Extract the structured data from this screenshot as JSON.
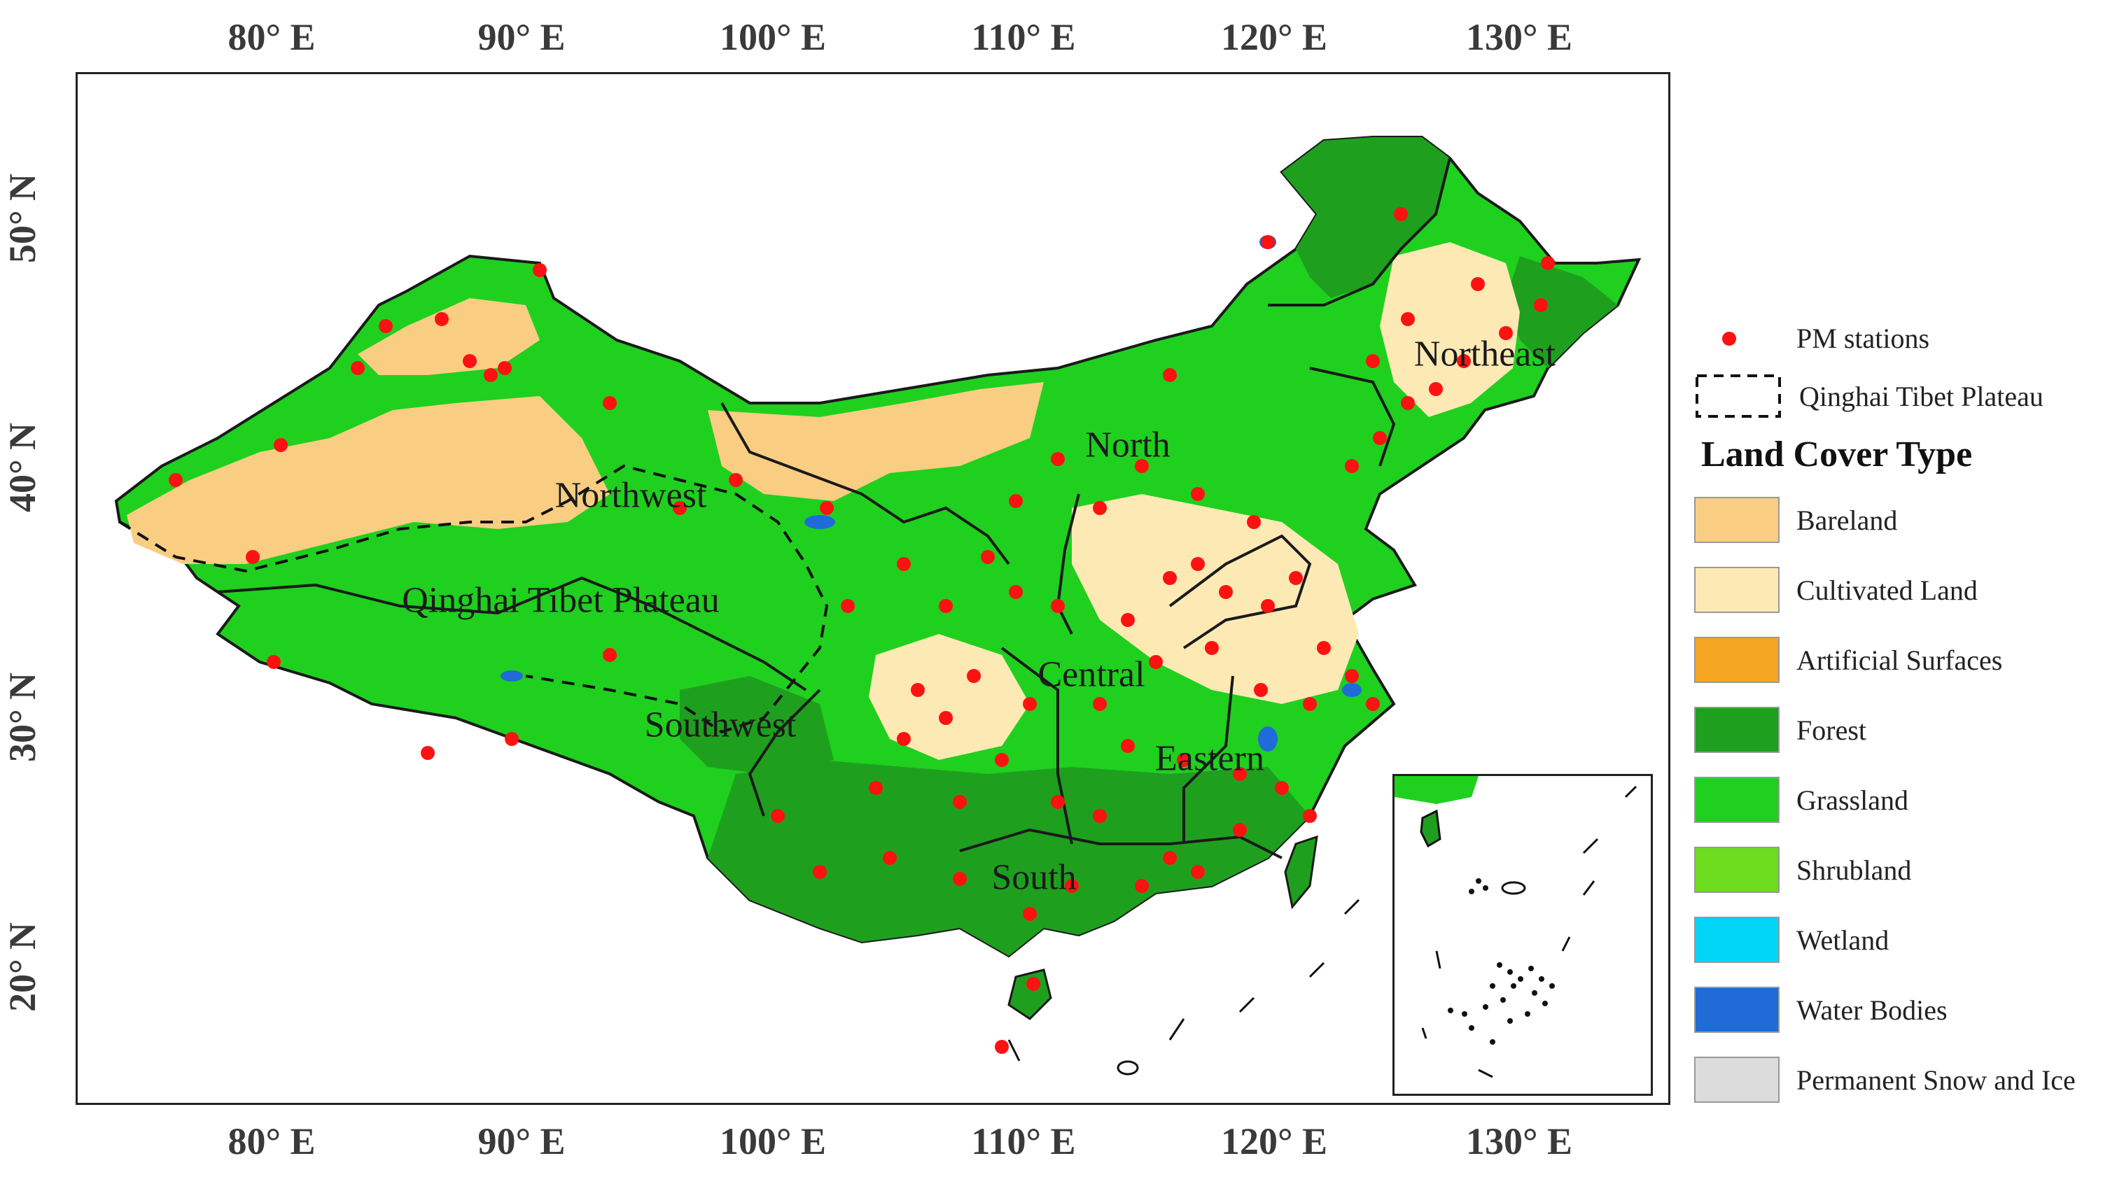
{
  "map": {
    "lon_ticks_top": [
      "80° E",
      "90° E",
      "100° E",
      "110° E",
      "120° E",
      "130° E"
    ],
    "lon_ticks_bottom": [
      "80° E",
      "90° E",
      "100° E",
      "110° E",
      "120° E",
      "130° E"
    ],
    "lat_ticks": [
      "50° N",
      "40° N",
      "30° N",
      "20° N"
    ],
    "regions": [
      "Northeast",
      "North",
      "Northwest",
      "Qinghai Tibet Plateau",
      "Central",
      "Southwest",
      "Eastern",
      "South"
    ],
    "colors": {
      "bareland": "#f9cd82",
      "cultivated": "#fde9b4",
      "artificial": "#f5a623",
      "forest": "#1ea01e",
      "grassland": "#1fd01f",
      "shrubland": "#6cdc1e",
      "wetland": "#00d5f5",
      "water": "#1f6bd8",
      "snow": "#dcdcdc",
      "station": "#ff1111"
    }
  },
  "legend": {
    "stations_label": "PM stations",
    "plateau_label": "Qinghai Tibet Plateau",
    "title": "Land Cover Type",
    "items": [
      {
        "label": "Bareland",
        "color": "#f9cd82"
      },
      {
        "label": "Cultivated Land",
        "color": "#fde9b4"
      },
      {
        "label": "Artificial Surfaces",
        "color": "#f5a623"
      },
      {
        "label": "Forest",
        "color": "#1ea01e"
      },
      {
        "label": "Grassland",
        "color": "#1fd01f"
      },
      {
        "label": "Shrubland",
        "color": "#6cdc1e"
      },
      {
        "label": "Wetland",
        "color": "#00d5f5"
      },
      {
        "label": "Water Bodies",
        "color": "#1f6bd8"
      },
      {
        "label": "Permanent Snow and Ice",
        "color": "#dcdcdc"
      }
    ]
  }
}
